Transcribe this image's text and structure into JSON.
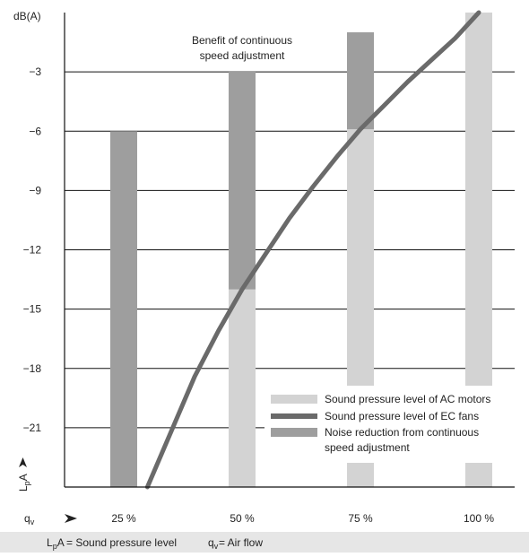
{
  "chart_data": {
    "type": "bar",
    "title": "",
    "y_unit_label": "dB(A)",
    "y_axis_label": "LpA",
    "x_axis_label": "qv",
    "ylim": [
      -24,
      0
    ],
    "yticks": [
      -3,
      -6,
      -9,
      -12,
      -15,
      -18,
      -21
    ],
    "ytick_labels": [
      "−3",
      "−6",
      "−9",
      "−12",
      "−15",
      "−18",
      "−21"
    ],
    "categories": [
      "25 %",
      "50 %",
      "75 %",
      "100 %"
    ],
    "x_positions": [
      25,
      50,
      75,
      100
    ],
    "grid": true,
    "legend_position": "bottom-right",
    "series": [
      {
        "name": "Sound pressure level of AC motors",
        "kind": "bar",
        "color": "#d3d3d3",
        "values": [
          null,
          -3,
          -1,
          0
        ]
      },
      {
        "name": "Noise reduction from continuous speed adjustment",
        "kind": "bar",
        "color": "#9e9e9e",
        "values": [
          -6,
          -3,
          -1,
          null
        ]
      },
      {
        "name": "Sound pressure level of EC fans",
        "kind": "line",
        "color": "#6a6a6a",
        "x": [
          30,
          35,
          40,
          45,
          50,
          55,
          60,
          65,
          70,
          75,
          80,
          85,
          90,
          95,
          100
        ],
        "y": [
          -24,
          -21.2,
          -18.4,
          -16.1,
          -14.0,
          -12.2,
          -10.4,
          -8.8,
          -7.3,
          -5.9,
          -4.7,
          -3.5,
          -2.4,
          -1.3,
          0
        ]
      }
    ],
    "annotations": [
      "Benefit of continuous",
      "speed adjustment"
    ],
    "footer": {
      "lpa_def": "= Sound pressure level",
      "qv_def": "= Air flow"
    }
  }
}
